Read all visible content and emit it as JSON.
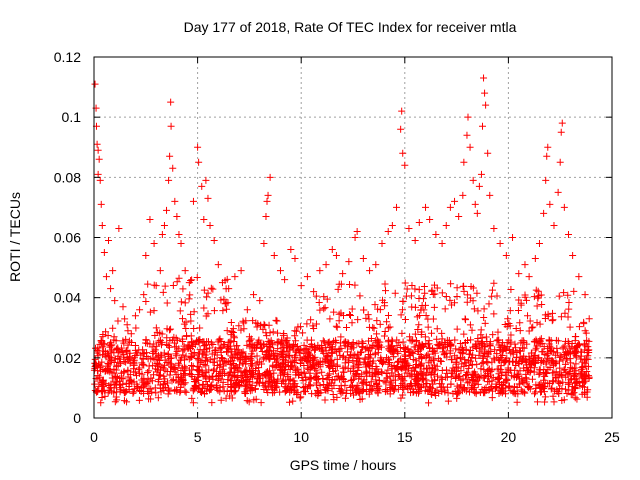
{
  "chart_data": {
    "type": "scatter",
    "title": "Day 177 of 2018, Rate Of TEC Index for receiver mtla",
    "xlabel": "GPS time / hours",
    "ylabel": "ROTI / TECUs",
    "xlim": [
      0,
      25
    ],
    "ylim": [
      0,
      0.12
    ],
    "xticks": [
      0,
      5,
      10,
      15,
      20,
      25
    ],
    "yticks": [
      0,
      0.02,
      0.04,
      0.06,
      0.08,
      0.1,
      0.12
    ],
    "xtick_labels": [
      "0",
      "5",
      "10",
      "15",
      "20",
      "25"
    ],
    "ytick_labels": [
      "0",
      "0.02",
      "0.04",
      "0.06",
      "0.08",
      "0.1",
      "0.12"
    ],
    "grid": true,
    "marker": "+",
    "color": "#ff0000",
    "series": [
      {
        "name": "ROTI",
        "points": [
          [
            0.05,
            0.111
          ],
          [
            0.1,
            0.103
          ],
          [
            0.12,
            0.097
          ],
          [
            0.15,
            0.091
          ],
          [
            0.2,
            0.089
          ],
          [
            0.25,
            0.086
          ],
          [
            0.2,
            0.081
          ],
          [
            0.3,
            0.079
          ],
          [
            0.35,
            0.071
          ],
          [
            0.4,
            0.064
          ],
          [
            0.5,
            0.055
          ],
          [
            0.6,
            0.047
          ],
          [
            0.8,
            0.043
          ],
          [
            1.0,
            0.039
          ],
          [
            1.2,
            0.063
          ],
          [
            1.4,
            0.037
          ],
          [
            0.7,
            0.059
          ],
          [
            0.9,
            0.049
          ],
          [
            1.6,
            0.031
          ],
          [
            1.8,
            0.028
          ],
          [
            2.0,
            0.034
          ],
          [
            2.2,
            0.036
          ],
          [
            2.4,
            0.041
          ],
          [
            2.5,
            0.054
          ],
          [
            2.7,
            0.066
          ],
          [
            2.9,
            0.058
          ],
          [
            3.0,
            0.044
          ],
          [
            3.2,
            0.049
          ],
          [
            3.3,
            0.061
          ],
          [
            3.4,
            0.064
          ],
          [
            3.5,
            0.069
          ],
          [
            3.6,
            0.079
          ],
          [
            3.65,
            0.087
          ],
          [
            3.7,
            0.105
          ],
          [
            3.72,
            0.097
          ],
          [
            3.8,
            0.083
          ],
          [
            3.9,
            0.072
          ],
          [
            4.0,
            0.067
          ],
          [
            4.1,
            0.061
          ],
          [
            4.2,
            0.058
          ],
          [
            4.4,
            0.049
          ],
          [
            4.6,
            0.045
          ],
          [
            4.8,
            0.072
          ],
          [
            5.0,
            0.09
          ],
          [
            5.05,
            0.085
          ],
          [
            5.2,
            0.077
          ],
          [
            5.4,
            0.079
          ],
          [
            5.5,
            0.073
          ],
          [
            5.3,
            0.066
          ],
          [
            5.6,
            0.064
          ],
          [
            5.8,
            0.059
          ],
          [
            6.0,
            0.051
          ],
          [
            6.2,
            0.045
          ],
          [
            6.5,
            0.043
          ],
          [
            6.8,
            0.047
          ],
          [
            7.1,
            0.049
          ],
          [
            7.4,
            0.036
          ],
          [
            7.7,
            0.041
          ],
          [
            8.0,
            0.039
          ],
          [
            8.2,
            0.058
          ],
          [
            8.3,
            0.067
          ],
          [
            8.4,
            0.074
          ],
          [
            8.5,
            0.08
          ],
          [
            8.35,
            0.072
          ],
          [
            8.7,
            0.054
          ],
          [
            9.0,
            0.049
          ],
          [
            9.2,
            0.046
          ],
          [
            9.5,
            0.056
          ],
          [
            9.7,
            0.053
          ],
          [
            10.0,
            0.044
          ],
          [
            10.3,
            0.047
          ],
          [
            10.6,
            0.042
          ],
          [
            10.9,
            0.049
          ],
          [
            11.2,
            0.051
          ],
          [
            11.5,
            0.056
          ],
          [
            11.7,
            0.054
          ],
          [
            12.0,
            0.048
          ],
          [
            12.3,
            0.052
          ],
          [
            12.6,
            0.06
          ],
          [
            12.7,
            0.062
          ],
          [
            13.0,
            0.053
          ],
          [
            13.3,
            0.049
          ],
          [
            13.6,
            0.051
          ],
          [
            13.9,
            0.058
          ],
          [
            14.2,
            0.062
          ],
          [
            14.4,
            0.064
          ],
          [
            14.6,
            0.07
          ],
          [
            14.8,
            0.096
          ],
          [
            14.85,
            0.102
          ],
          [
            14.9,
            0.088
          ],
          [
            15.0,
            0.084
          ],
          [
            15.2,
            0.063
          ],
          [
            15.5,
            0.059
          ],
          [
            15.7,
            0.065
          ],
          [
            16.0,
            0.07
          ],
          [
            16.2,
            0.066
          ],
          [
            16.5,
            0.061
          ],
          [
            16.8,
            0.058
          ],
          [
            17.0,
            0.064
          ],
          [
            17.2,
            0.07
          ],
          [
            17.4,
            0.072
          ],
          [
            17.6,
            0.067
          ],
          [
            17.8,
            0.074
          ],
          [
            17.85,
            0.085
          ],
          [
            18.0,
            0.094
          ],
          [
            18.05,
            0.1
          ],
          [
            18.15,
            0.09
          ],
          [
            18.3,
            0.079
          ],
          [
            18.4,
            0.071
          ],
          [
            18.5,
            0.068
          ],
          [
            18.6,
            0.077
          ],
          [
            18.7,
            0.081
          ],
          [
            18.75,
            0.097
          ],
          [
            18.8,
            0.113
          ],
          [
            18.85,
            0.108
          ],
          [
            18.9,
            0.104
          ],
          [
            19.0,
            0.088
          ],
          [
            19.1,
            0.074
          ],
          [
            19.3,
            0.063
          ],
          [
            19.6,
            0.058
          ],
          [
            19.9,
            0.054
          ],
          [
            20.2,
            0.06
          ],
          [
            20.5,
            0.048
          ],
          [
            20.8,
            0.051
          ],
          [
            21.0,
            0.047
          ],
          [
            21.3,
            0.053
          ],
          [
            21.5,
            0.058
          ],
          [
            21.7,
            0.068
          ],
          [
            21.8,
            0.079
          ],
          [
            21.85,
            0.087
          ],
          [
            21.9,
            0.09
          ],
          [
            22.0,
            0.071
          ],
          [
            22.2,
            0.064
          ],
          [
            22.4,
            0.075
          ],
          [
            22.5,
            0.085
          ],
          [
            22.55,
            0.095
          ],
          [
            22.6,
            0.098
          ],
          [
            22.7,
            0.07
          ],
          [
            22.9,
            0.061
          ],
          [
            23.1,
            0.054
          ],
          [
            23.4,
            0.047
          ],
          [
            23.7,
            0.041
          ],
          [
            23.9,
            0.033
          ]
        ]
      }
    ]
  }
}
